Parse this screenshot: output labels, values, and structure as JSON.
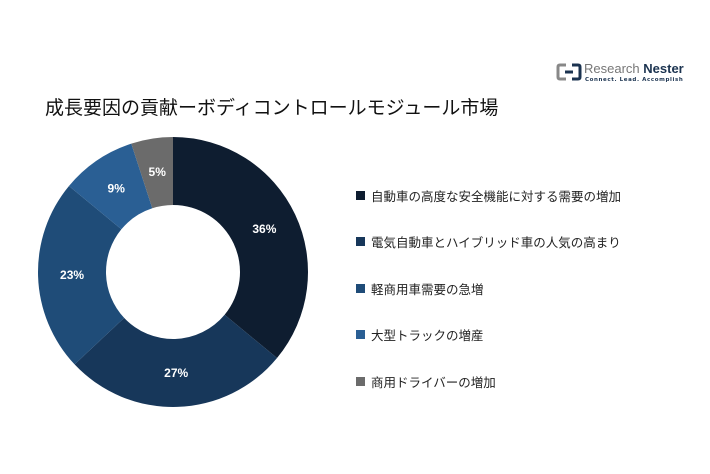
{
  "logo": {
    "name_part1": "Research",
    "name_part2": "Nester",
    "tagline": "Connect. Lead. Accomplish"
  },
  "chart_data": {
    "type": "pie",
    "title": "成長要因の貢献ーボディコントロールモジュール市場",
    "categories": [
      "自動車の高度な安全機能に対する需要の増加",
      "電気自動車とハイブリッド車の人気の高まり",
      "軽商用車需要の急増",
      "大型トラックの増産",
      "商用ドライバーの増加"
    ],
    "values": [
      36,
      27,
      23,
      9,
      5
    ],
    "labels": [
      "36%",
      "27%",
      "23%",
      "9%",
      "5%"
    ],
    "colors": [
      "#0e1d30",
      "#17375a",
      "#1f4c78",
      "#2a5f94",
      "#6b6b6b"
    ],
    "legend_position": "right",
    "donut": true
  }
}
